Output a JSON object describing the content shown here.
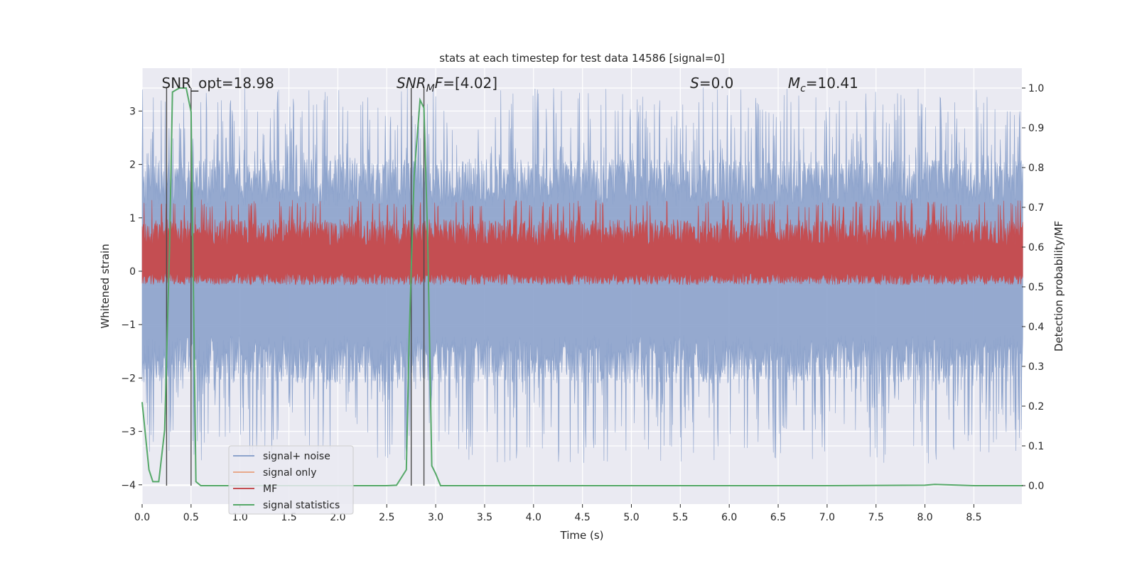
{
  "chart_data": {
    "type": "line",
    "title": "stats at each timestep for test data 14586 [signal=0]",
    "xlabel": "Time (s)",
    "ylabel": "Whitened strain",
    "y2label": "Detection probability/MF",
    "xlim": [
      0.0,
      9.0
    ],
    "ylim": [
      -4.35,
      3.6
    ],
    "y2lim": [
      -0.05,
      1.05
    ],
    "xticks": [
      "0.0",
      "0.5",
      "1.0",
      "1.5",
      "2.0",
      "2.5",
      "3.0",
      "3.5",
      "4.0",
      "4.5",
      "5.0",
      "5.5",
      "6.0",
      "6.5",
      "7.0",
      "7.5",
      "8.0",
      "8.5"
    ],
    "yticks": [
      "3",
      "2",
      "1",
      "0",
      "−1",
      "−2",
      "−3",
      "−4"
    ],
    "y2ticks": [
      "1.0",
      "0.9",
      "0.8",
      "0.7",
      "0.6",
      "0.5",
      "0.4",
      "0.3",
      "0.2",
      "0.1",
      "0.0"
    ],
    "grid": true,
    "legend_position": "lower-left",
    "annotations": [
      {
        "text": "SNR_opt=18.98",
        "x": 0.2
      },
      {
        "text": "SNR",
        "sub": "M",
        "tail": "F=[4.02]",
        "x": 2.6
      },
      {
        "text": "S",
        "tail": "=0.0",
        "x": 5.6
      },
      {
        "text": "M",
        "sub": "c",
        "tail": "=10.41",
        "x": 6.6
      }
    ],
    "vlines": [
      0.25,
      0.5,
      2.75,
      2.88
    ],
    "series": [
      {
        "name": "signal+ noise",
        "color": "#8da3cc",
        "axis": "left",
        "envelope": {
          "upper_typical": 2.0,
          "upper_max": 3.45,
          "lower_typical": -2.0,
          "lower_min": -3.6
        }
      },
      {
        "name": "signal only",
        "color": "#e8a98c",
        "axis": "left"
      },
      {
        "name": "MF",
        "color": "#c44e52",
        "axis": "right",
        "band": [
          0.55,
          0.7
        ]
      },
      {
        "name": "signal statistics",
        "color": "#55a868",
        "axis": "right",
        "x": [
          0.0,
          0.07,
          0.11,
          0.17,
          0.23,
          0.28,
          0.31,
          0.38,
          0.45,
          0.5,
          0.55,
          0.6,
          0.7,
          1.0,
          2.0,
          2.5,
          2.6,
          2.7,
          2.73,
          2.78,
          2.84,
          2.88,
          2.92,
          2.96,
          3.0,
          3.05,
          3.2,
          4.0,
          5.0,
          6.0,
          7.0,
          8.0,
          8.1,
          8.5,
          9.0
        ],
        "values": [
          0.21,
          0.04,
          0.01,
          0.01,
          0.14,
          0.6,
          0.99,
          1.0,
          1.0,
          0.94,
          0.01,
          0.0,
          0.0,
          0.0,
          0.0,
          0.0,
          0.001,
          0.04,
          0.38,
          0.78,
          0.97,
          0.95,
          0.6,
          0.05,
          0.03,
          0.0,
          0.0,
          0.0,
          0.0,
          0.0,
          0.0,
          0.001,
          0.003,
          0.0,
          0.0
        ]
      }
    ]
  }
}
